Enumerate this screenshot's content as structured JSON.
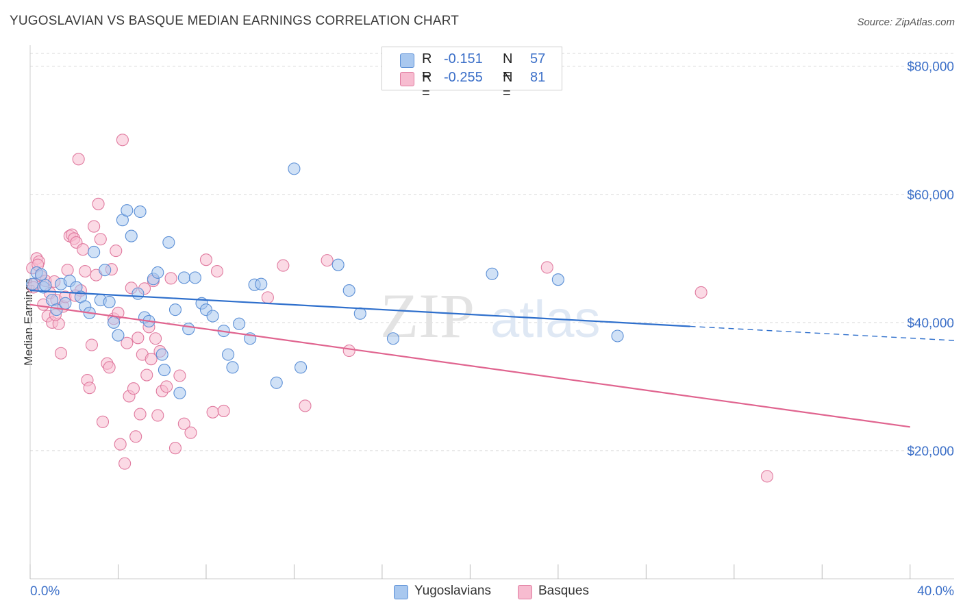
{
  "header": {
    "title": "YUGOSLAVIAN VS BASQUE MEDIAN EARNINGS CORRELATION CHART",
    "source": "Source: ZipAtlas.com"
  },
  "legend": {
    "yugo": {
      "r_label": "R =",
      "r_value": "-0.151",
      "n_label": "N =",
      "n_value": "57"
    },
    "basque": {
      "r_label": "R =",
      "r_value": "-0.255",
      "n_label": "N =",
      "n_value": "81"
    }
  },
  "bottom_legend": {
    "yugo": "Yugoslavians",
    "basque": "Basques"
  },
  "axis": {
    "ylabel": "Median Earnings",
    "x_min_label": "0.0%",
    "x_max_label": "40.0%",
    "y_ticks": [
      "$20,000",
      "$40,000",
      "$60,000",
      "$80,000"
    ]
  },
  "colors": {
    "yugo_fill": "#a9c8ef",
    "yugo_stroke": "#5b8fd6",
    "yugo_line": "#2e6fcc",
    "basque_fill": "#f7bcd0",
    "basque_stroke": "#e07a9f",
    "basque_line": "#e0648f",
    "tick_text": "#3b6fc8",
    "grid": "#d9d9d9"
  },
  "chart_data": {
    "type": "scatter",
    "title": "YUGOSLAVIAN VS BASQUE MEDIAN EARNINGS CORRELATION CHART",
    "xlabel": "",
    "ylabel": "Median Earnings",
    "xlim": [
      0,
      42
    ],
    "ylim": [
      0,
      82000
    ],
    "y_ticks": [
      20000,
      40000,
      60000,
      80000
    ],
    "series": [
      {
        "name": "Yugoslavians",
        "r": -0.151,
        "n": 57,
        "trend": {
          "x0": 0,
          "y0": 45000,
          "x1": 30,
          "y1": 39400,
          "dashed_to_x": 42,
          "dashed_to_y": 37200
        },
        "points": [
          [
            0.1,
            46000
          ],
          [
            0.3,
            47800
          ],
          [
            0.5,
            47500
          ],
          [
            0.6,
            45500
          ],
          [
            0.7,
            45800
          ],
          [
            1.0,
            43500
          ],
          [
            1.2,
            42000
          ],
          [
            1.4,
            46000
          ],
          [
            1.6,
            43000
          ],
          [
            1.8,
            46500
          ],
          [
            2.1,
            45500
          ],
          [
            2.3,
            44000
          ],
          [
            2.5,
            42500
          ],
          [
            2.7,
            41500
          ],
          [
            2.9,
            51000
          ],
          [
            3.2,
            43500
          ],
          [
            3.4,
            48200
          ],
          [
            3.6,
            43200
          ],
          [
            3.8,
            40000
          ],
          [
            4.0,
            38000
          ],
          [
            4.2,
            56000
          ],
          [
            4.4,
            57500
          ],
          [
            4.6,
            53500
          ],
          [
            4.9,
            44500
          ],
          [
            5.0,
            57300
          ],
          [
            5.2,
            40800
          ],
          [
            5.4,
            40200
          ],
          [
            5.6,
            46800
          ],
          [
            5.8,
            47800
          ],
          [
            6.0,
            35000
          ],
          [
            6.1,
            32600
          ],
          [
            6.3,
            52500
          ],
          [
            6.6,
            42000
          ],
          [
            6.8,
            29000
          ],
          [
            7.0,
            47000
          ],
          [
            7.2,
            39000
          ],
          [
            7.5,
            47000
          ],
          [
            7.8,
            43000
          ],
          [
            8.0,
            42000
          ],
          [
            8.3,
            41000
          ],
          [
            8.8,
            38700
          ],
          [
            9.0,
            35000
          ],
          [
            9.2,
            33000
          ],
          [
            9.5,
            39800
          ],
          [
            10.0,
            37500
          ],
          [
            10.2,
            45900
          ],
          [
            10.5,
            46000
          ],
          [
            11.2,
            30600
          ],
          [
            12.0,
            64000
          ],
          [
            12.3,
            33000
          ],
          [
            14.0,
            49000
          ],
          [
            14.5,
            45000
          ],
          [
            15.0,
            41400
          ],
          [
            16.5,
            37500
          ],
          [
            21.0,
            47600
          ],
          [
            24.0,
            46700
          ],
          [
            26.7,
            37900
          ]
        ]
      },
      {
        "name": "Basques",
        "r": -0.255,
        "n": 81,
        "trend": {
          "x0": 0,
          "y0": 42800,
          "x1": 40,
          "y1": 23700
        },
        "points": [
          [
            0.1,
            48500
          ],
          [
            0.2,
            46000
          ],
          [
            0.3,
            50000
          ],
          [
            0.4,
            49500
          ],
          [
            0.5,
            47200
          ],
          [
            0.6,
            42800
          ],
          [
            0.7,
            46500
          ],
          [
            0.8,
            41000
          ],
          [
            0.9,
            44600
          ],
          [
            1.0,
            40000
          ],
          [
            1.1,
            46400
          ],
          [
            1.2,
            43500
          ],
          [
            1.3,
            39800
          ],
          [
            1.4,
            35200
          ],
          [
            1.5,
            42500
          ],
          [
            1.6,
            44000
          ],
          [
            1.7,
            48200
          ],
          [
            1.8,
            53500
          ],
          [
            1.9,
            53700
          ],
          [
            2.0,
            53100
          ],
          [
            2.1,
            52500
          ],
          [
            2.2,
            65500
          ],
          [
            2.3,
            45000
          ],
          [
            2.4,
            51400
          ],
          [
            2.5,
            48000
          ],
          [
            2.6,
            31000
          ],
          [
            2.7,
            29800
          ],
          [
            2.8,
            36500
          ],
          [
            2.9,
            55000
          ],
          [
            3.0,
            47400
          ],
          [
            3.1,
            58500
          ],
          [
            3.2,
            53000
          ],
          [
            3.3,
            24500
          ],
          [
            3.5,
            33600
          ],
          [
            3.6,
            33000
          ],
          [
            3.7,
            48300
          ],
          [
            3.8,
            40600
          ],
          [
            3.9,
            51200
          ],
          [
            4.0,
            41500
          ],
          [
            4.1,
            21000
          ],
          [
            4.2,
            68500
          ],
          [
            4.3,
            18000
          ],
          [
            4.4,
            36800
          ],
          [
            4.5,
            28500
          ],
          [
            4.6,
            45400
          ],
          [
            4.7,
            29700
          ],
          [
            4.8,
            22200
          ],
          [
            4.9,
            37600
          ],
          [
            5.0,
            25700
          ],
          [
            5.1,
            35000
          ],
          [
            5.2,
            45300
          ],
          [
            5.3,
            31800
          ],
          [
            5.4,
            39300
          ],
          [
            5.5,
            34300
          ],
          [
            5.6,
            46500
          ],
          [
            5.7,
            37500
          ],
          [
            5.8,
            25500
          ],
          [
            5.9,
            35500
          ],
          [
            6.0,
            29300
          ],
          [
            6.2,
            30000
          ],
          [
            6.4,
            46900
          ],
          [
            6.6,
            20400
          ],
          [
            6.8,
            31700
          ],
          [
            7.0,
            24200
          ],
          [
            7.3,
            22800
          ],
          [
            8.0,
            49800
          ],
          [
            8.3,
            26000
          ],
          [
            8.5,
            48000
          ],
          [
            8.8,
            26200
          ],
          [
            10.8,
            43900
          ],
          [
            11.5,
            48900
          ],
          [
            12.5,
            27000
          ],
          [
            13.5,
            49700
          ],
          [
            14.5,
            35600
          ],
          [
            23.5,
            48600
          ],
          [
            30.5,
            44700
          ],
          [
            33.5,
            16000
          ],
          [
            0.15,
            45500
          ],
          [
            0.35,
            49000
          ],
          [
            1.15,
            41200
          ],
          [
            2.05,
            44200
          ]
        ]
      }
    ]
  }
}
